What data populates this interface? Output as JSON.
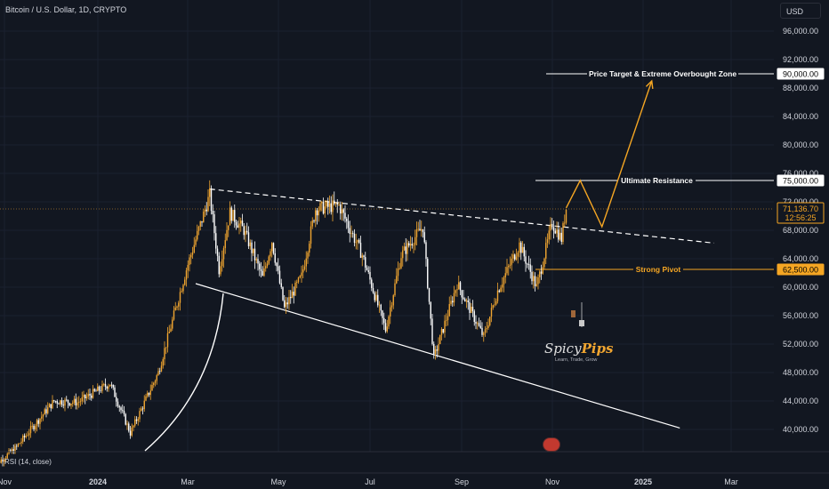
{
  "header": {
    "symbol_title": "Bitcoin / U.S. Dollar, 1D, CRYPTO",
    "currency": "USD"
  },
  "price_axis": {
    "labels": [
      "96,000.00",
      "92,000.00",
      "88,000.00",
      "84,000.00",
      "80,000.00",
      "76,000.00",
      "72,000.00",
      "68,000.00",
      "64,000.00",
      "60,000.00",
      "56,000.00",
      "52,000.00",
      "48,000.00",
      "44,000.00",
      "40,000.00"
    ],
    "price_tags": {
      "target": "90,000.00",
      "resistance": "75,000.00",
      "current_price": "71,136.70",
      "countdown": "12:56:25",
      "pivot": "62,500.00"
    }
  },
  "time_axis": {
    "labels": [
      "Nov",
      "2024",
      "Mar",
      "May",
      "Jul",
      "Sep",
      "Nov",
      "2025",
      "Mar"
    ]
  },
  "annotations": {
    "target_label": "Price Target & Extreme Overbought Zone",
    "resistance_label": "Ultimate Resistance",
    "pivot_label": "Strong Pivot"
  },
  "indicator": {
    "rsi_label": "RSI (14, close)"
  },
  "watermark": {
    "brand_a": "Spicy",
    "brand_b": "Pips",
    "tagline": "Learn, Trade, Grow"
  },
  "colors": {
    "background": "#121721",
    "up_candle": "#f0a530",
    "down_candle": "#ffffff",
    "accent_orange": "#f5a623",
    "white": "#ffffff"
  },
  "chart_data": {
    "type": "candlestick",
    "symbol": "Bitcoin / U.S. Dollar, 1D, CRYPTO",
    "y_range": [
      38000,
      98000
    ],
    "levels": [
      {
        "name": "Price Target & Extreme Overbought Zone",
        "value": 90000
      },
      {
        "name": "Ultimate Resistance",
        "value": 75000
      },
      {
        "name": "Strong Pivot",
        "value": 62500
      }
    ],
    "last_price": 71136.7,
    "keypoints": [
      {
        "date": "2023-10-25",
        "price": 34500
      },
      {
        "date": "2023-11-10",
        "price": 37300
      },
      {
        "date": "2023-12-05",
        "price": 44000
      },
      {
        "date": "2023-12-20",
        "price": 43800
      },
      {
        "date": "2024-01-10",
        "price": 46500
      },
      {
        "date": "2024-01-23",
        "price": 39500
      },
      {
        "date": "2024-02-10",
        "price": 48000
      },
      {
        "date": "2024-02-28",
        "price": 62500
      },
      {
        "date": "2024-03-14",
        "price": 73000
      },
      {
        "date": "2024-03-20",
        "price": 62500
      },
      {
        "date": "2024-03-27",
        "price": 70500
      },
      {
        "date": "2024-04-05",
        "price": 68000
      },
      {
        "date": "2024-04-17",
        "price": 61300
      },
      {
        "date": "2024-04-23",
        "price": 66500
      },
      {
        "date": "2024-05-01",
        "price": 57000
      },
      {
        "date": "2024-05-12",
        "price": 61500
      },
      {
        "date": "2024-05-21",
        "price": 71000
      },
      {
        "date": "2024-06-05",
        "price": 71500
      },
      {
        "date": "2024-06-20",
        "price": 64500
      },
      {
        "date": "2024-07-05",
        "price": 54000
      },
      {
        "date": "2024-07-15",
        "price": 64500
      },
      {
        "date": "2024-07-29",
        "price": 68500
      },
      {
        "date": "2024-08-05",
        "price": 50000
      },
      {
        "date": "2024-08-20",
        "price": 60500
      },
      {
        "date": "2024-09-06",
        "price": 53000
      },
      {
        "date": "2024-09-15",
        "price": 59500
      },
      {
        "date": "2024-09-29",
        "price": 66000
      },
      {
        "date": "2024-10-10",
        "price": 60000
      },
      {
        "date": "2024-10-20",
        "price": 69000
      },
      {
        "date": "2024-10-26",
        "price": 66800
      },
      {
        "date": "2024-10-29",
        "price": 71136.7
      }
    ],
    "projection": [
      {
        "date": "2024-10-29",
        "price": 71136.7
      },
      {
        "date": "2024-11-07",
        "price": 75000
      },
      {
        "date": "2024-11-21",
        "price": 68500
      },
      {
        "date": "2024-12-23",
        "price": 89000
      }
    ],
    "trendlines": [
      {
        "name": "descending-resistance",
        "from": {
          "date": "2024-03-14",
          "price": 73800
        },
        "to": {
          "date": "2025-02-01",
          "price": 66200
        },
        "style": "dashed"
      },
      {
        "name": "descending-support",
        "from": {
          "date": "2024-03-05",
          "price": 60500
        },
        "to": {
          "date": "2025-01-10",
          "price": 40200
        },
        "style": "solid"
      }
    ]
  }
}
